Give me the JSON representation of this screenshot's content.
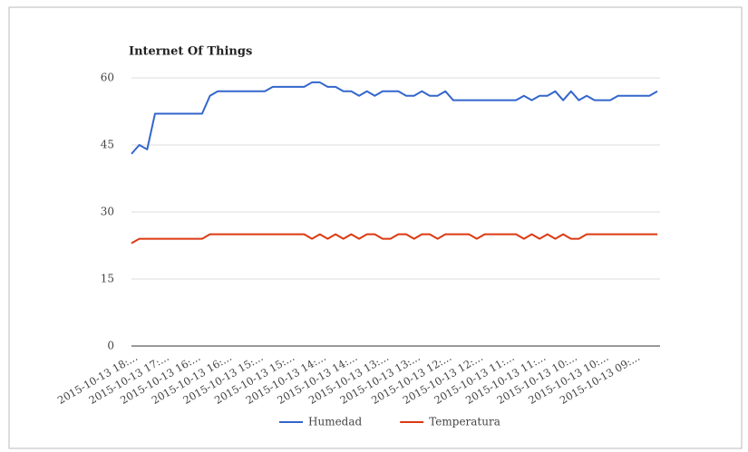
{
  "chart_data": {
    "type": "line",
    "title": "Internet Of Things",
    "categories": [
      "2015-10-13 18:...",
      null,
      null,
      null,
      "2015-10-13 17:...",
      null,
      null,
      null,
      "2015-10-13 16:...",
      null,
      null,
      null,
      "2015-10-13 16:...",
      null,
      null,
      null,
      "2015-10-13 15:...",
      null,
      null,
      null,
      "2015-10-13 15:...",
      null,
      null,
      null,
      "2015-10-13 14:...",
      null,
      null,
      null,
      "2015-10-13 14:...",
      null,
      null,
      null,
      "2015-10-13 13:...",
      null,
      null,
      null,
      "2015-10-13 13:...",
      null,
      null,
      null,
      "2015-10-13 12:...",
      null,
      null,
      null,
      "2015-10-13 12:...",
      null,
      null,
      null,
      "2015-10-13 11:...",
      null,
      null,
      null,
      "2015-10-13 11:...",
      null,
      null,
      null,
      "2015-10-13 10:...",
      null,
      null,
      null,
      "2015-10-13 10:...",
      null,
      null,
      null,
      "2015-10-13 09:...",
      null,
      null,
      null
    ],
    "series": [
      {
        "name": "Humedad",
        "color": "#3366cc",
        "values": [
          43,
          45,
          44,
          52,
          52,
          52,
          52,
          52,
          52,
          52,
          56,
          57,
          57,
          57,
          57,
          57,
          57,
          57,
          58,
          58,
          58,
          58,
          58,
          59,
          59,
          58,
          58,
          57,
          57,
          56,
          57,
          56,
          57,
          57,
          57,
          56,
          56,
          57,
          56,
          56,
          57,
          55,
          55,
          55,
          55,
          55,
          55,
          55,
          55,
          55,
          56,
          55,
          56,
          56,
          57,
          55,
          57,
          55,
          56,
          55,
          55,
          55,
          56,
          56,
          56,
          56,
          56,
          57
        ]
      },
      {
        "name": "Temperatura",
        "color": "#dc3912",
        "values": [
          23,
          24,
          24,
          24,
          24,
          24,
          24,
          24,
          24,
          24,
          25,
          25,
          25,
          25,
          25,
          25,
          25,
          25,
          25,
          25,
          25,
          25,
          25,
          24,
          25,
          24,
          25,
          24,
          25,
          24,
          25,
          25,
          24,
          24,
          25,
          25,
          24,
          25,
          25,
          24,
          25,
          25,
          25,
          25,
          24,
          25,
          25,
          25,
          25,
          25,
          24,
          25,
          24,
          25,
          24,
          25,
          24,
          24,
          25,
          25,
          25,
          25,
          25,
          25,
          25,
          25,
          25,
          25
        ]
      }
    ],
    "ylim": [
      0,
      60
    ],
    "yticks": [
      0,
      15,
      30,
      45,
      60
    ],
    "grid": true,
    "legend": "bottom"
  }
}
